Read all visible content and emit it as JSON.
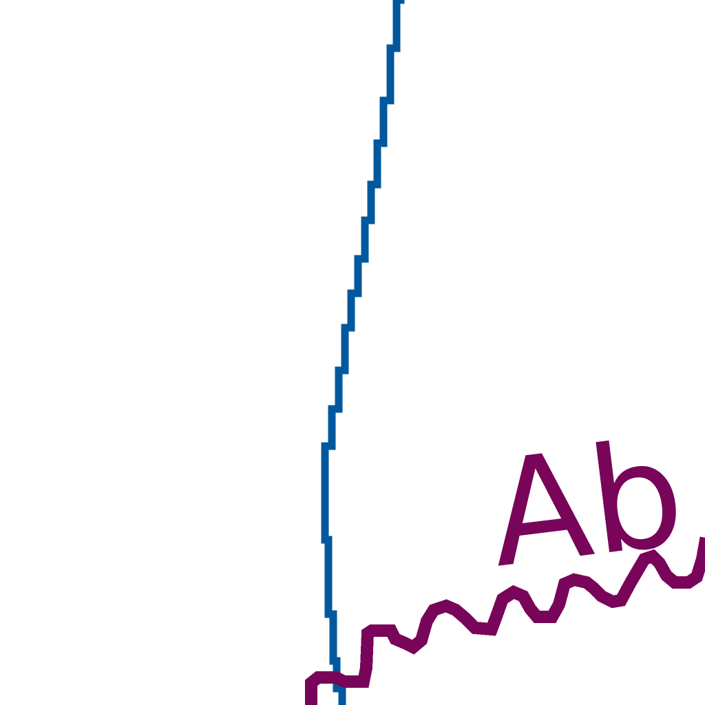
{
  "colors": {
    "background": "#ffffff",
    "curve": "#02589e",
    "annotation": "#780559"
  },
  "annotation_text": "Ab"
}
